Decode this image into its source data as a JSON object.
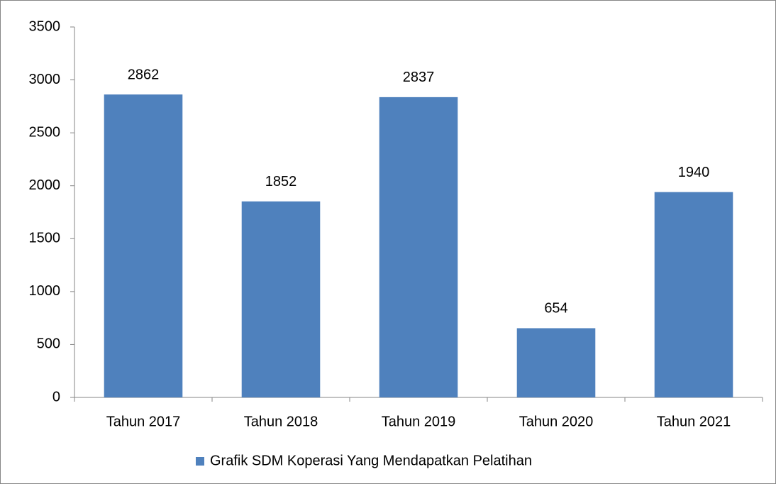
{
  "chart_data": {
    "type": "bar",
    "categories": [
      "Tahun 2017",
      "Tahun 2018",
      "Tahun 2019",
      "Tahun 2020",
      "Tahun 2021"
    ],
    "series": [
      {
        "name": "Grafik SDM Koperasi Yang Mendapatkan Pelatihan",
        "color": "#4f81bd",
        "values": [
          2862,
          1852,
          2837,
          654,
          1940
        ]
      }
    ],
    "ylim": [
      0,
      3500
    ],
    "yticks": [
      0,
      500,
      1000,
      1500,
      2000,
      2500,
      3000,
      3500
    ],
    "grid": false,
    "legend": "bottom",
    "data_labels": true
  }
}
